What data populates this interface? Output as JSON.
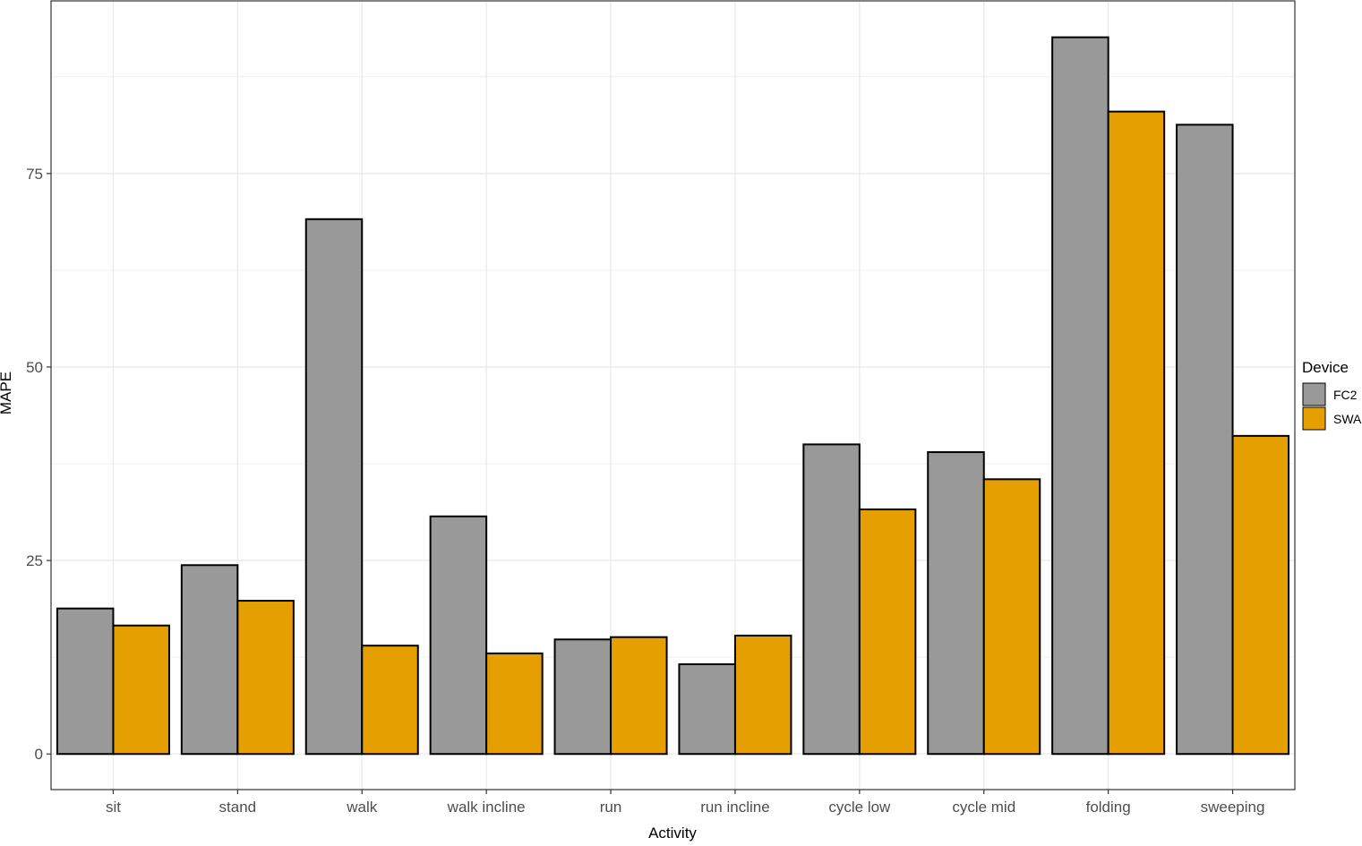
{
  "chart_data": {
    "type": "bar",
    "title": "",
    "xlabel": "Activity",
    "ylabel": "MAPE",
    "categories": [
      "sit",
      "stand",
      "walk",
      "walk incline",
      "run",
      "run incline",
      "cycle low",
      "cycle mid",
      "folding",
      "sweeping"
    ],
    "series": [
      {
        "name": "FC2",
        "color": "#999999",
        "values": [
          18.8,
          24.4,
          69.1,
          30.7,
          14.8,
          11.6,
          40.0,
          39.0,
          92.6,
          81.3
        ]
      },
      {
        "name": "SWA",
        "color": "#E69F00",
        "values": [
          16.6,
          19.8,
          14.0,
          13.0,
          15.1,
          15.3,
          31.6,
          35.5,
          83.0,
          41.1
        ]
      }
    ],
    "ylim": [
      -4.6,
      97.3
    ],
    "yticks": [
      0,
      25,
      50,
      75
    ],
    "grid": true,
    "legend": {
      "title": "Device",
      "position": "right"
    }
  }
}
